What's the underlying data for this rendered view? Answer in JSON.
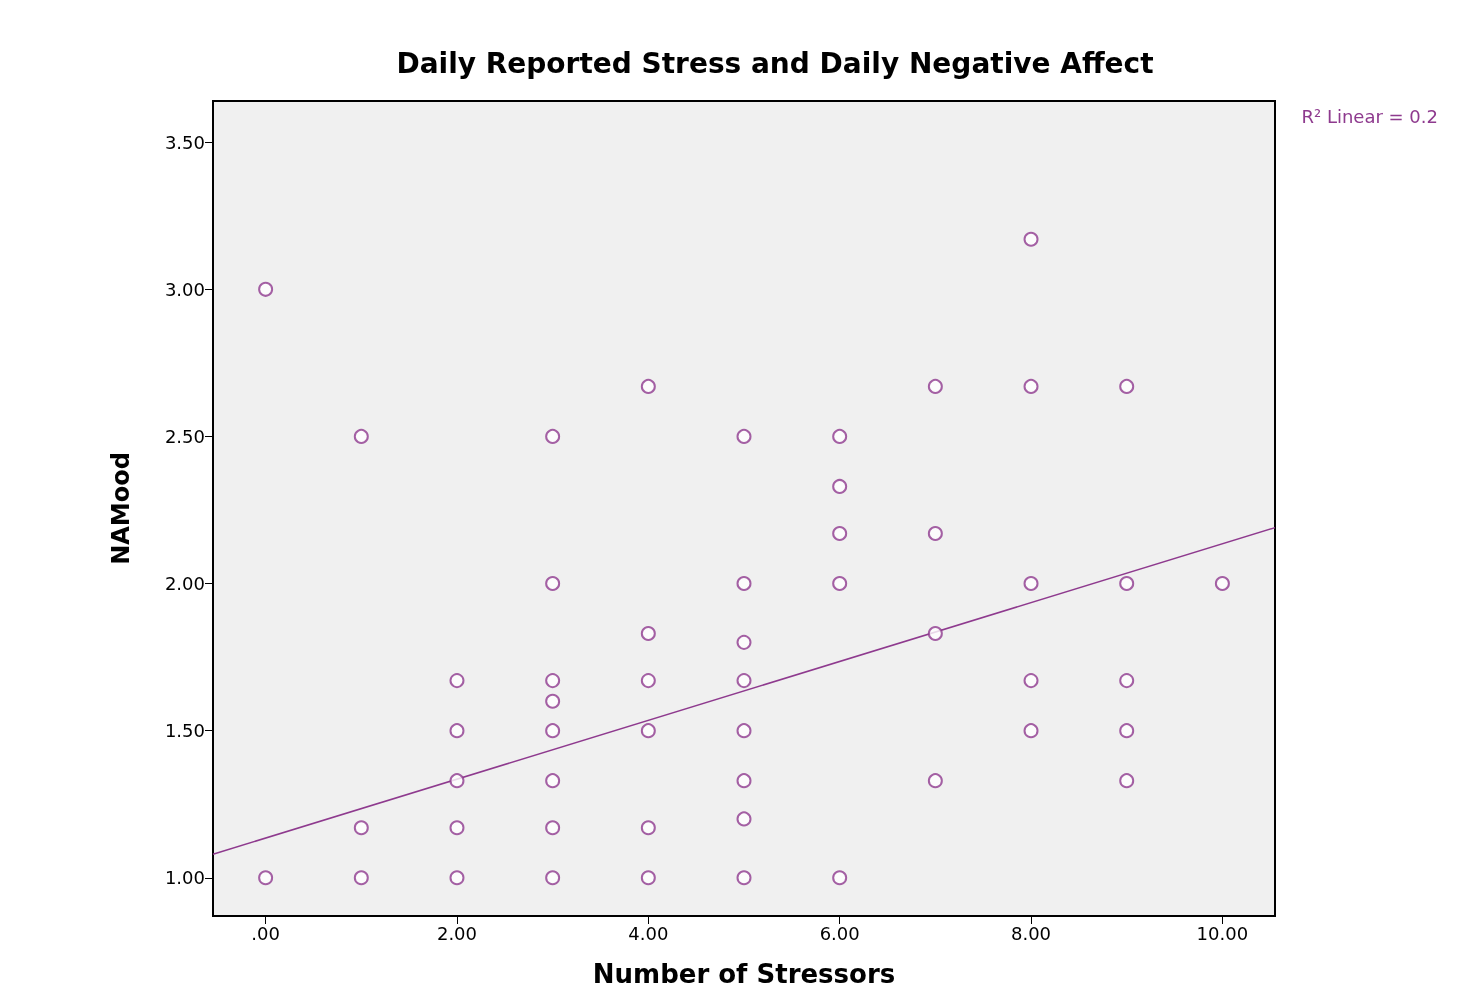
{
  "chart_data": {
    "type": "scatter",
    "title": "Daily Reported Stress and Daily Negative Affect",
    "xlabel": "Number of Stressors",
    "ylabel": "NAMood",
    "annotations": [
      "R² Linear = 0.2"
    ],
    "marker": "circle",
    "grid": false,
    "xlim": [
      -0.55,
      10.55
    ],
    "ylim": [
      0.87,
      3.64
    ],
    "xticks": [
      {
        "value": 0,
        "label": ".00"
      },
      {
        "value": 2,
        "label": "2.00"
      },
      {
        "value": 4,
        "label": "4.00"
      },
      {
        "value": 6,
        "label": "6.00"
      },
      {
        "value": 8,
        "label": "8.00"
      },
      {
        "value": 10,
        "label": "10.00"
      }
    ],
    "yticks": [
      {
        "value": 1,
        "label": "1.00"
      },
      {
        "value": 1.5,
        "label": "1.50"
      },
      {
        "value": 2,
        "label": "2.00"
      },
      {
        "value": 2.5,
        "label": "2.50"
      },
      {
        "value": 3,
        "label": "3.00"
      },
      {
        "value": 3.5,
        "label": "3.50"
      }
    ],
    "series": [
      {
        "color": "#8e3a8e",
        "x": [
          0,
          0,
          1,
          1,
          1,
          2,
          2,
          2,
          2,
          2,
          3,
          3,
          3,
          3,
          3,
          3,
          3,
          3,
          4,
          4,
          4,
          4,
          4,
          4,
          5,
          5,
          5,
          5,
          5,
          5,
          5,
          5,
          6,
          6,
          6,
          6,
          6,
          7,
          7,
          7,
          7,
          8,
          8,
          8,
          8,
          8,
          9,
          9,
          9,
          9,
          9,
          10
        ],
        "values": [
          3.0,
          1.0,
          2.5,
          1.17,
          1.0,
          1.67,
          1.5,
          1.33,
          1.17,
          1.0,
          2.5,
          2.0,
          1.67,
          1.6,
          1.5,
          1.33,
          1.17,
          1.0,
          2.67,
          1.83,
          1.67,
          1.5,
          1.17,
          1.0,
          2.5,
          2.0,
          1.8,
          1.67,
          1.5,
          1.33,
          1.2,
          1.0,
          2.5,
          2.33,
          2.17,
          2.0,
          1.0,
          2.67,
          2.17,
          1.83,
          1.33,
          3.17,
          2.67,
          2.0,
          1.67,
          1.5,
          2.67,
          2.0,
          1.67,
          1.5,
          1.33,
          2.0
        ]
      },
      {
        "type": "line",
        "color": "#8e3a8e",
        "marker": "none",
        "x": [
          -0.55,
          10.55
        ],
        "values": [
          1.08,
          2.19
        ]
      }
    ]
  }
}
